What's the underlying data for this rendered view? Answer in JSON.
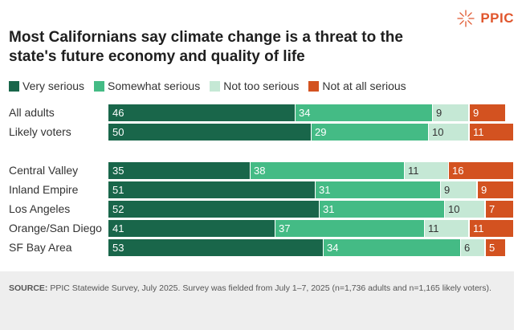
{
  "brand": {
    "name": "PPIC"
  },
  "chart_data": {
    "type": "bar",
    "orientation": "horizontal",
    "stacked": true,
    "title": "Most Californians say climate change is a threat to the state's future economy and quality of life",
    "categories": [
      "All adults",
      "Likely voters",
      "Central Valley",
      "Inland Empire",
      "Los Angeles",
      "Orange/San Diego",
      "SF Bay Area"
    ],
    "series": [
      {
        "name": "Very serious",
        "color": "#19664a",
        "values": [
          46,
          50,
          35,
          51,
          52,
          41,
          53
        ]
      },
      {
        "name": "Somewhat serious",
        "color": "#44bb85",
        "values": [
          34,
          29,
          38,
          31,
          31,
          37,
          34
        ]
      },
      {
        "name": "Not too serious",
        "color": "#c5e8d5",
        "values": [
          9,
          10,
          11,
          9,
          10,
          11,
          6
        ]
      },
      {
        "name": "Not at all serious",
        "color": "#d35220",
        "values": [
          9,
          11,
          16,
          9,
          7,
          11,
          5
        ]
      }
    ],
    "xlim": [
      0,
      100
    ],
    "legend": "top-left"
  },
  "source": {
    "label": "SOURCE:",
    "text": "PPIC Statewide Survey, July 2025. Survey was fielded from July 1–7, 2025 (n=1,736 adults and n=1,165 likely voters)."
  }
}
